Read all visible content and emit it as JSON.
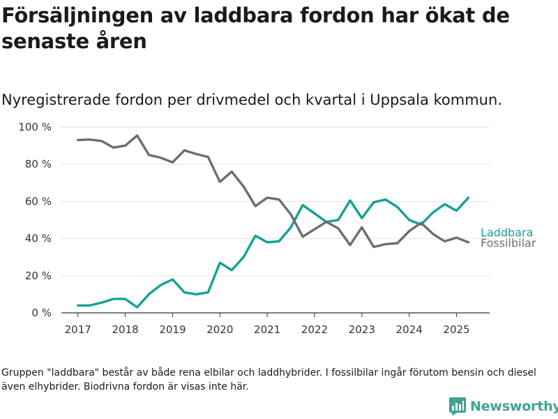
{
  "title": "Försäljningen av laddbara fordon har ökat de senaste åren",
  "subtitle": "Nyregistrerade fordon per drivmedel och kvartal i Uppsala kommun.",
  "footnote": "Gruppen \"laddbara\" består av både rena elbilar och laddhybrider. I fossilbilar ingår förutom bensin och diesel även elhybrider. Biodrivna fordon är visas inte här.",
  "brand": {
    "name": "Newsworthy",
    "color": "#3fa394"
  },
  "chart_data": {
    "type": "line",
    "x": [
      2017.0,
      2017.25,
      2017.5,
      2017.75,
      2018.0,
      2018.25,
      2018.5,
      2018.75,
      2019.0,
      2019.25,
      2019.5,
      2019.75,
      2020.0,
      2020.25,
      2020.5,
      2020.75,
      2021.0,
      2021.25,
      2021.5,
      2021.75,
      2022.0,
      2022.25,
      2022.5,
      2022.75,
      2023.0,
      2023.25,
      2023.5,
      2023.75,
      2024.0,
      2024.25,
      2024.5,
      2024.75,
      2025.0,
      2025.25
    ],
    "series": [
      {
        "name": "Laddbara",
        "color": "#14a197",
        "values": [
          4,
          4,
          5.5,
          7.5,
          7.5,
          3,
          10,
          15,
          18,
          11,
          10,
          11,
          27,
          23,
          30,
          41.5,
          38,
          38.5,
          46,
          58,
          53.5,
          49,
          50,
          60.5,
          51,
          59.5,
          61,
          57,
          50,
          47.5,
          54,
          58.5,
          55,
          62
        ]
      },
      {
        "name": "Fossilbilar",
        "color": "#6f6b73",
        "values": [
          93,
          93.3,
          92.5,
          89,
          90,
          95.5,
          85,
          83.5,
          81,
          87.5,
          85.5,
          84,
          70.5,
          76,
          68,
          57.5,
          62,
          61,
          53,
          41,
          45,
          49,
          45.5,
          36.5,
          46,
          35.5,
          37,
          37.5,
          44,
          48.5,
          42.5,
          38.5,
          40.5,
          38
        ]
      }
    ],
    "y_ticks": [
      "0 %",
      "20 %",
      "40 %",
      "60 %",
      "80 %",
      "100 %"
    ],
    "x_ticks": [
      "2017",
      "2018",
      "2019",
      "2020",
      "2021",
      "2022",
      "2023",
      "2024",
      "2025"
    ],
    "ylim": [
      0,
      100
    ],
    "xlim": [
      2016.65,
      2025.7
    ],
    "grid": true,
    "legend": "inline-right"
  }
}
